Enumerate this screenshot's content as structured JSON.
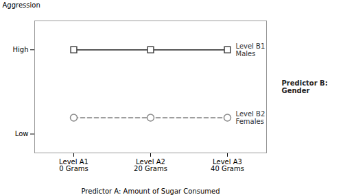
{
  "chart_data": {
    "type": "line",
    "y_label": "Aggression",
    "x_label": "Predictor A: Amount of Sugar Consumed",
    "annotations": [
      "Predictor B:\nGender"
    ],
    "categories": [
      "Level A1\n0 Grams",
      "Level A2\n20 Grams",
      "Level A3\n40 Grams"
    ],
    "series": [
      {
        "name": "Level B1\nMales",
        "color": "#444444",
        "marker": "square",
        "line_style": "solid",
        "values": [
          0.82,
          0.82,
          0.82
        ]
      },
      {
        "name": "Level B2\nFemales",
        "color": "#888888",
        "marker": "circle",
        "line_style": "dashed",
        "values": [
          0.28,
          0.28,
          0.28
        ]
      }
    ],
    "ylim": [
      0.0,
      1.05
    ],
    "yticks": [
      {
        "value": 0.82,
        "label": "High"
      },
      {
        "value": 0.15,
        "label": "Low"
      }
    ],
    "grid": false
  }
}
